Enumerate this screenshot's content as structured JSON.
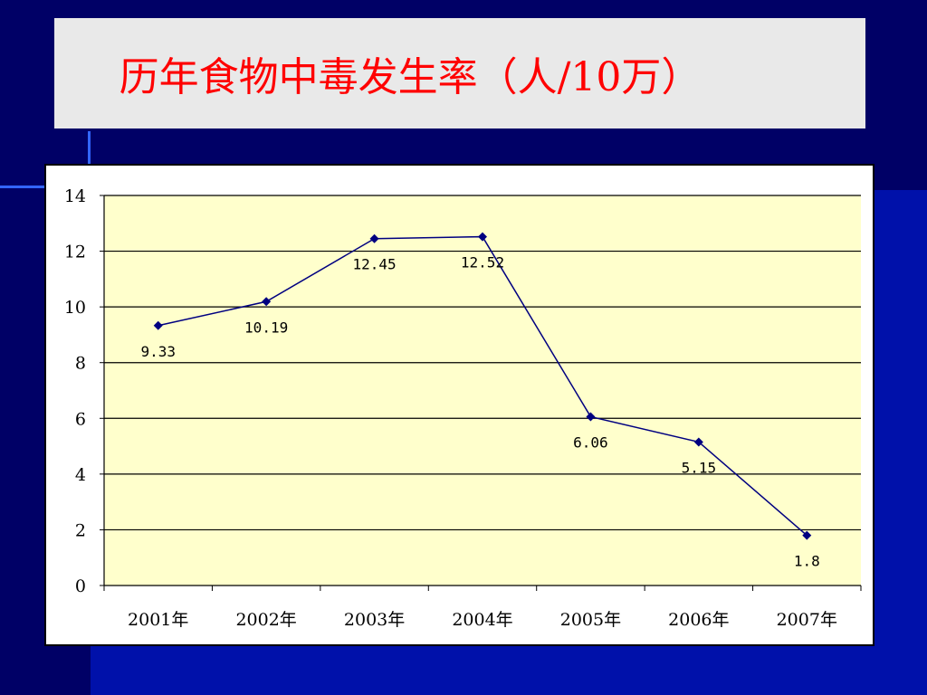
{
  "slide": {
    "title": "历年食物中毒发生率（人/10万）"
  },
  "colors": {
    "title": "#ff0000",
    "plot_area": "#ffffcc",
    "series_line": "#000080",
    "background": "#00007a"
  },
  "chart_data": {
    "type": "line",
    "categories": [
      "2001年",
      "2002年",
      "2003年",
      "2004年",
      "2005年",
      "2006年",
      "2007年"
    ],
    "series": [
      {
        "values": [
          9.33,
          10.19,
          12.45,
          12.52,
          6.06,
          5.15,
          1.8
        ]
      }
    ],
    "data_labels": [
      "9.33",
      "10.19",
      "12.45",
      "12.52",
      "6.06",
      "5.15",
      "1.8"
    ],
    "yticks": [
      0,
      2,
      4,
      6,
      8,
      10,
      12,
      14
    ],
    "ylim": [
      0,
      14
    ],
    "grid": true,
    "legend": "none",
    "marker": "diamond"
  }
}
